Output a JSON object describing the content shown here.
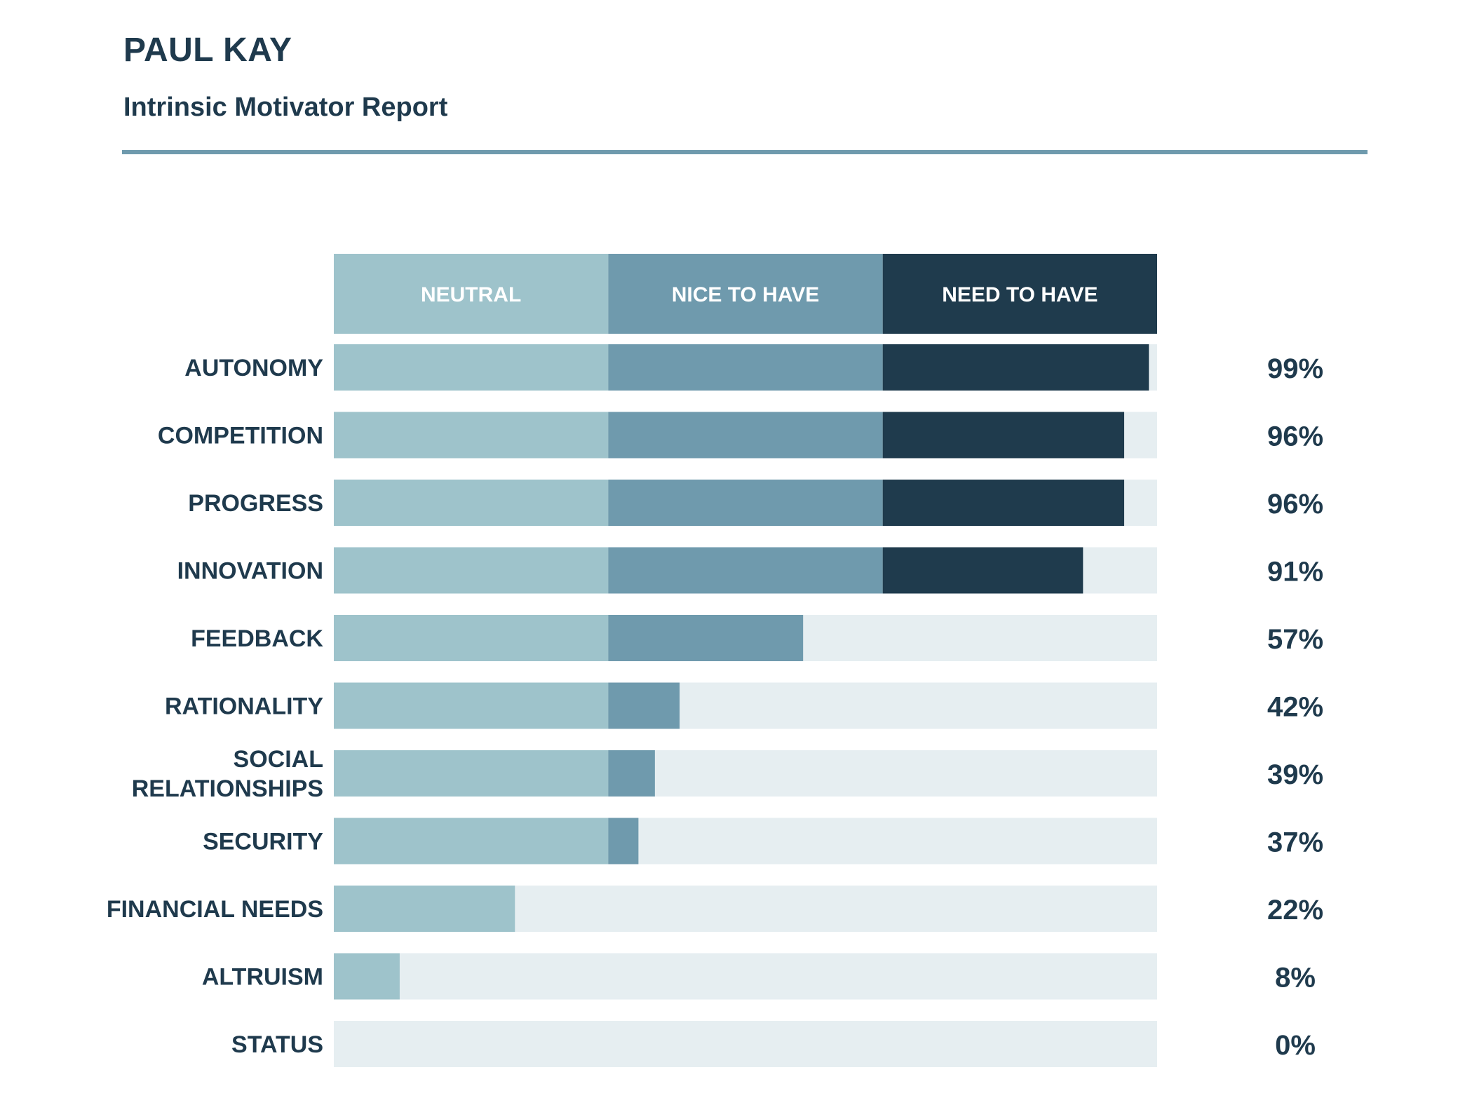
{
  "report": {
    "name": "PAUL KAY",
    "subtitle": "Intrinsic Motivator Report"
  },
  "colors": {
    "neutral": "#9ec3cb",
    "nice_to_have": "#6f9aad",
    "need_to_have": "#1f3b4d",
    "track": "#e6eef1",
    "text": "#1f3a4d",
    "rule": "#6f9aad"
  },
  "chart_data": {
    "type": "bar",
    "orientation": "horizontal",
    "title": "",
    "xlabel": "",
    "ylabel": "",
    "xlim": [
      0,
      100
    ],
    "grid": false,
    "bands": [
      {
        "name": "NEUTRAL",
        "from": 0,
        "to": 33.33,
        "color": "#9ec3cb"
      },
      {
        "name": "NICE TO HAVE",
        "from": 33.33,
        "to": 66.67,
        "color": "#6f9aad"
      },
      {
        "name": "NEED TO HAVE",
        "from": 66.67,
        "to": 100,
        "color": "#1f3b4d"
      }
    ],
    "categories": [
      [
        "AUTONOMY"
      ],
      [
        "COMPETITION"
      ],
      [
        "PROGRESS"
      ],
      [
        "INNOVATION"
      ],
      [
        "FEEDBACK"
      ],
      [
        "RATIONALITY"
      ],
      [
        "SOCIAL",
        "RELATIONSHIPS"
      ],
      [
        "SECURITY"
      ],
      [
        "FINANCIAL NEEDS"
      ],
      [
        "ALTRUISM"
      ],
      [
        "STATUS"
      ]
    ],
    "values": [
      99,
      96,
      96,
      91,
      57,
      42,
      39,
      37,
      22,
      8,
      0
    ],
    "value_labels": [
      "99%",
      "96%",
      "96%",
      "91%",
      "57%",
      "42%",
      "39%",
      "37%",
      "22%",
      "8%",
      "0%"
    ]
  }
}
